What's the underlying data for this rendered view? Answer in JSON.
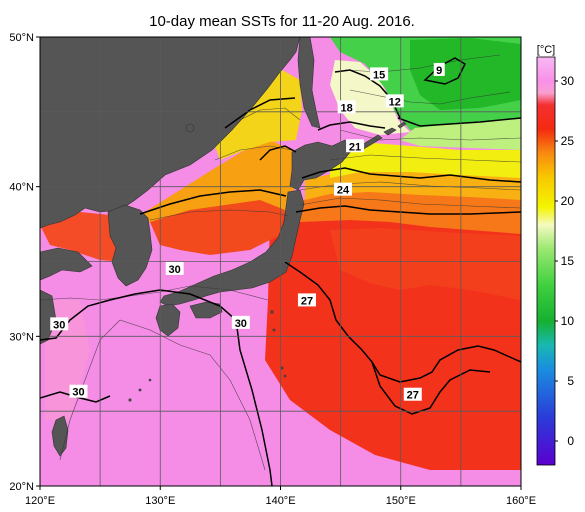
{
  "title": "10-day mean SSTs for 11-20 Aug. 2016.",
  "map": {
    "lon_range": [
      120,
      160
    ],
    "lat_range": [
      20,
      50
    ],
    "lon_ticks": [
      {
        "value": 120,
        "label": "120°E"
      },
      {
        "value": 130,
        "label": "130°E"
      },
      {
        "value": 140,
        "label": "140°E"
      },
      {
        "value": 150,
        "label": "150°E"
      },
      {
        "value": 160,
        "label": "160°E"
      }
    ],
    "lat_ticks": [
      {
        "value": 20,
        "label": "20°N"
      },
      {
        "value": 30,
        "label": "30°N"
      },
      {
        "value": 40,
        "label": "40°N"
      },
      {
        "value": 50,
        "label": "50°N"
      }
    ],
    "grid": true,
    "land_color": "#555555",
    "grid_color": "#666666"
  },
  "contour_labels": [
    {
      "text": "15",
      "lon": 148.2,
      "lat": 47.5
    },
    {
      "text": "9",
      "lon": 153.2,
      "lat": 47.8
    },
    {
      "text": "18",
      "lon": 145.5,
      "lat": 45.3
    },
    {
      "text": "12",
      "lon": 149.5,
      "lat": 45.7
    },
    {
      "text": "21",
      "lon": 146.2,
      "lat": 42.7
    },
    {
      "text": "24",
      "lon": 145.2,
      "lat": 39.8
    },
    {
      "text": "30",
      "lon": 131.2,
      "lat": 34.5
    },
    {
      "text": "27",
      "lon": 142.2,
      "lat": 32.4
    },
    {
      "text": "30",
      "lon": 136.7,
      "lat": 30.9
    },
    {
      "text": "30",
      "lon": 121.6,
      "lat": 30.8
    },
    {
      "text": "30",
      "lon": 123.2,
      "lat": 26.3
    },
    {
      "text": "27",
      "lon": 151.0,
      "lat": 26.1
    }
  ],
  "colorbar": {
    "unit": "[°C]",
    "min": -2,
    "max": 32,
    "ticks": [
      {
        "value": 30,
        "label": "30"
      },
      {
        "value": 25,
        "label": "25"
      },
      {
        "value": 20,
        "label": "20"
      },
      {
        "value": 15,
        "label": "15"
      },
      {
        "value": 10,
        "label": "10"
      },
      {
        "value": 5,
        "label": "5"
      },
      {
        "value": 0,
        "label": "0"
      }
    ],
    "stops": [
      {
        "value": -2,
        "color": "#5a00d0"
      },
      {
        "value": 2,
        "color": "#2a3cd8"
      },
      {
        "value": 6,
        "color": "#1a8ee0"
      },
      {
        "value": 8,
        "color": "#18b8b0"
      },
      {
        "value": 10,
        "color": "#16b030"
      },
      {
        "value": 13,
        "color": "#40d040"
      },
      {
        "value": 16,
        "color": "#9ae870"
      },
      {
        "value": 18,
        "color": "#f4fac0"
      },
      {
        "value": 19.5,
        "color": "#f4f400"
      },
      {
        "value": 22,
        "color": "#f8c800"
      },
      {
        "value": 24,
        "color": "#f88a10"
      },
      {
        "value": 26,
        "color": "#f42a10"
      },
      {
        "value": 28,
        "color": "#f43030"
      },
      {
        "value": 29,
        "color": "#f8a0d0"
      },
      {
        "value": 30,
        "color": "#f890e8"
      },
      {
        "value": 32,
        "color": "#f8b8f4"
      }
    ]
  }
}
